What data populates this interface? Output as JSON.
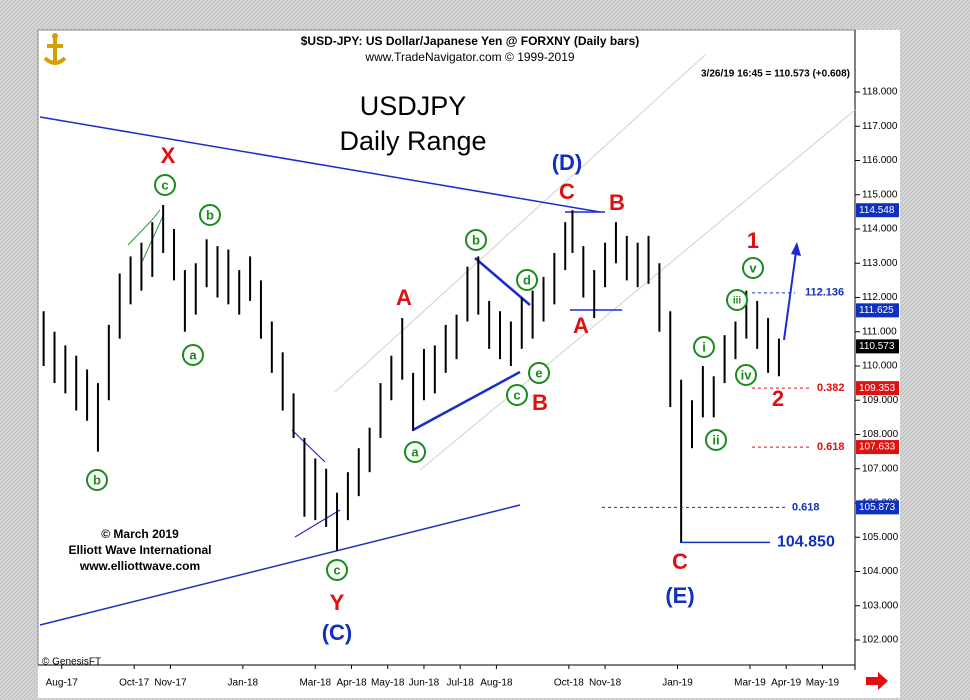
{
  "chart_data": {
    "type": "ohlc",
    "title": "$USD-JPY: US Dollar/Japanese Yen @ FORXNY (Daily bars)",
    "subtitle": "www.TradeNavigator.com © 1999-2019",
    "quote": "3/26/19 16:45 = 110.573 (+0.608)",
    "heading": [
      "USDJPY",
      "Daily Range"
    ],
    "credits": [
      "© March 2019",
      "Elliott Wave International",
      "www.elliottwave.com"
    ],
    "source": "© GenesisFT",
    "bar_color": "#000000",
    "x": [
      -0.5,
      -0.2,
      0.1,
      0.4,
      0.7,
      1.0,
      1.3,
      1.6,
      1.9,
      2.2,
      2.5,
      2.8,
      3.1,
      3.4,
      3.7,
      4.0,
      4.3,
      4.6,
      4.9,
      5.2,
      5.5,
      5.8,
      6.1,
      6.4,
      6.7,
      7.0,
      7.3,
      7.6,
      7.9,
      8.2,
      8.5,
      8.8,
      9.1,
      9.4,
      9.7,
      10.0,
      10.3,
      10.6,
      10.9,
      11.2,
      11.5,
      11.8,
      12.1,
      12.4,
      12.7,
      13.0,
      13.3,
      13.6,
      13.9,
      14.1,
      14.4,
      14.7,
      15.0,
      15.3,
      15.6,
      15.9,
      16.2,
      16.5,
      16.8,
      17.1,
      17.4,
      17.7,
      18.0,
      18.3,
      18.6,
      18.9,
      19.2,
      19.5,
      19.8
    ],
    "high": [
      111.6,
      111.0,
      110.6,
      110.3,
      109.9,
      109.5,
      111.2,
      112.7,
      113.2,
      113.6,
      114.2,
      114.7,
      114.0,
      112.8,
      113.0,
      113.7,
      113.5,
      113.4,
      112.8,
      113.2,
      112.5,
      111.3,
      110.4,
      109.2,
      107.9,
      107.3,
      107.0,
      106.3,
      106.9,
      107.6,
      108.2,
      109.5,
      110.3,
      111.4,
      109.8,
      110.5,
      110.6,
      111.2,
      111.5,
      112.9,
      113.2,
      111.9,
      111.6,
      111.3,
      112.0,
      112.2,
      112.6,
      113.3,
      114.2,
      114.55,
      113.5,
      112.8,
      113.6,
      114.2,
      113.8,
      113.6,
      113.8,
      113.0,
      111.6,
      109.6,
      109.0,
      110.0,
      109.7,
      110.9,
      111.3,
      112.2,
      111.9,
      111.4,
      110.8
    ],
    "low": [
      110.0,
      109.5,
      109.2,
      108.7,
      108.4,
      107.5,
      109.0,
      110.8,
      111.8,
      112.2,
      112.6,
      113.3,
      112.5,
      111.0,
      111.5,
      112.3,
      112.0,
      111.8,
      111.5,
      111.9,
      110.8,
      109.8,
      108.7,
      107.9,
      105.6,
      105.5,
      105.3,
      104.6,
      105.5,
      106.2,
      106.9,
      107.9,
      109.0,
      109.6,
      108.1,
      109.0,
      109.2,
      109.8,
      110.2,
      111.3,
      111.5,
      110.5,
      110.2,
      110.0,
      110.5,
      110.8,
      111.3,
      111.8,
      112.8,
      113.3,
      112.0,
      111.4,
      112.3,
      113.0,
      112.5,
      112.3,
      112.4,
      111.0,
      108.8,
      104.85,
      107.6,
      108.5,
      108.5,
      109.5,
      110.2,
      110.8,
      110.5,
      109.8,
      109.7
    ],
    "xlim": [
      -0.6,
      21.9
    ],
    "xticks": [
      {
        "value": 0,
        "label": "Aug-17"
      },
      {
        "value": 2,
        "label": "Oct-17"
      },
      {
        "value": 3,
        "label": "Nov-17"
      },
      {
        "value": 5,
        "label": "Jan-18"
      },
      {
        "value": 7,
        "label": "Mar-18"
      },
      {
        "value": 8,
        "label": "Apr-18"
      },
      {
        "value": 9,
        "label": "May-18"
      },
      {
        "value": 10,
        "label": "Jun-18"
      },
      {
        "value": 11,
        "label": "Jul-18"
      },
      {
        "value": 12,
        "label": "Aug-18"
      },
      {
        "value": 14,
        "label": "Oct-18"
      },
      {
        "value": 15,
        "label": "Nov-18"
      },
      {
        "value": 17,
        "label": "Jan-19"
      },
      {
        "value": 19,
        "label": "Mar-19"
      },
      {
        "value": 20,
        "label": "Apr-19"
      },
      {
        "value": 21,
        "label": "May-19"
      }
    ],
    "ylim": [
      101.27,
      119.81
    ],
    "yticks": [
      {
        "value": 102,
        "label": "102.000"
      },
      {
        "value": 103,
        "label": "103.000"
      },
      {
        "value": 104,
        "label": "104.000"
      },
      {
        "value": 105,
        "label": "105.000"
      },
      {
        "value": 106,
        "label": "106.000"
      },
      {
        "value": 107,
        "label": "107.000"
      },
      {
        "value": 108,
        "label": "108.000"
      },
      {
        "value": 109,
        "label": "109.000"
      },
      {
        "value": 110,
        "label": "110.000"
      },
      {
        "value": 111,
        "label": "111.000"
      },
      {
        "value": 112,
        "label": "112.000"
      },
      {
        "value": 113,
        "label": "113.000"
      },
      {
        "value": 114,
        "label": "114.000"
      },
      {
        "value": 115,
        "label": "115.000"
      },
      {
        "value": 116,
        "label": "116.000"
      },
      {
        "value": 117,
        "label": "117.000"
      },
      {
        "value": 118,
        "label": "118.000"
      }
    ],
    "price_tags": [
      {
        "value": 114.548,
        "color": "#1030c0"
      },
      {
        "value": 111.625,
        "color": "#1030c0"
      },
      {
        "value": 110.573,
        "color": "#000000"
      },
      {
        "value": 109.353,
        "color": "#e01010"
      },
      {
        "value": 107.633,
        "color": "#e01010"
      },
      {
        "value": 105.873,
        "color": "#1030c0"
      }
    ],
    "levels": [
      {
        "value": 112.136,
        "color": "#1030c0",
        "style": "dashed"
      },
      {
        "value": 109.353,
        "label": "0.382",
        "color": "#e01010",
        "style": "dashed"
      },
      {
        "value": 107.633,
        "label": "0.618",
        "color": "#e01010",
        "style": "dashed"
      },
      {
        "value": 105.873,
        "label": "0.618",
        "color": "#1030c0",
        "style": "dashed"
      },
      {
        "value": 104.85,
        "label": "104.850",
        "color": "#1030c0",
        "style": "solid"
      }
    ],
    "wave_labels": [
      {
        "text": "X",
        "color": "#e01010"
      },
      {
        "text": "c",
        "color": "#1a8a1a",
        "circled": true
      },
      {
        "text": "b",
        "color": "#1a8a1a",
        "circled": true
      },
      {
        "text": "a",
        "color": "#1a8a1a",
        "circled": true
      },
      {
        "text": "b",
        "color": "#1a8a1a",
        "circled": true
      },
      {
        "text": "Y",
        "color": "#e01010"
      },
      {
        "text": "c",
        "color": "#1a8a1a",
        "circled": true
      },
      {
        "text": "(C)",
        "color": "#1030c0"
      },
      {
        "text": "A",
        "color": "#e01010"
      },
      {
        "text": "a",
        "color": "#1a8a1a",
        "circled": true
      },
      {
        "text": "b",
        "color": "#1a8a1a",
        "circled": true
      },
      {
        "text": "d",
        "color": "#1a8a1a",
        "circled": true
      },
      {
        "text": "e",
        "color": "#1a8a1a",
        "circled": true
      },
      {
        "text": "c",
        "color": "#1a8a1a",
        "circled": true
      },
      {
        "text": "B",
        "color": "#e01010"
      },
      {
        "text": "(D)",
        "color": "#1030c0"
      },
      {
        "text": "C",
        "color": "#e01010"
      },
      {
        "text": "B",
        "color": "#e01010"
      },
      {
        "text": "A",
        "color": "#e01010"
      },
      {
        "text": "C",
        "color": "#e01010"
      },
      {
        "text": "(E)",
        "color": "#1030c0"
      },
      {
        "text": "i",
        "color": "#1a8a1a",
        "circled": true
      },
      {
        "text": "ii",
        "color": "#1a8a1a",
        "circled": true
      },
      {
        "text": "iii",
        "color": "#1a8a1a",
        "circled": true
      },
      {
        "text": "iv",
        "color": "#1a8a1a",
        "circled": true
      },
      {
        "text": "v",
        "color": "#1a8a1a",
        "circled": true
      },
      {
        "text": "1",
        "color": "#e01010"
      },
      {
        "text": "2",
        "color": "#e01010"
      }
    ]
  }
}
